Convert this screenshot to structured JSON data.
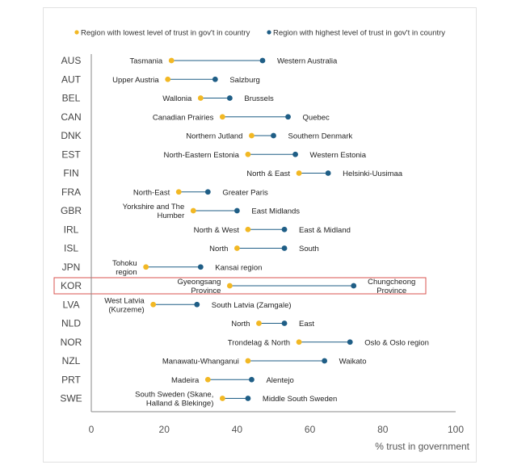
{
  "chart_data": {
    "type": "dumbbell",
    "xlabel": "% trust in government",
    "xlim": [
      0,
      100
    ],
    "xticks": [
      0,
      20,
      40,
      60,
      80,
      100
    ],
    "legend": {
      "position": "top",
      "lowest": "Region with lowest level of trust in gov't in country",
      "highest": "Region with highest level of trust in gov't in country"
    },
    "colors": {
      "lowest": "#f2b824",
      "highest": "#1f5e86",
      "connector": "#1f5e86",
      "highlight": "#d9534f",
      "axis": "#8a8a8a"
    },
    "highlighted_country": "KOR",
    "rows": [
      {
        "country": "AUS",
        "low_region": [
          "Tasmania"
        ],
        "low": 22,
        "high_region": [
          "Western Australia"
        ],
        "high": 47
      },
      {
        "country": "AUT",
        "low_region": [
          "Upper Austria"
        ],
        "low": 21,
        "high_region": [
          "Salzburg"
        ],
        "high": 34
      },
      {
        "country": "BEL",
        "low_region": [
          "Wallonia"
        ],
        "low": 30,
        "high_region": [
          "Brussels"
        ],
        "high": 38
      },
      {
        "country": "CAN",
        "low_region": [
          "Canadian Prairies"
        ],
        "low": 36,
        "high_region": [
          "Quebec"
        ],
        "high": 54
      },
      {
        "country": "DNK",
        "low_region": [
          "Northern Jutland"
        ],
        "low": 44,
        "high_region": [
          "Southern Denmark"
        ],
        "high": 50
      },
      {
        "country": "EST",
        "low_region": [
          "North-Eastern Estonia"
        ],
        "low": 43,
        "high_region": [
          "Western Estonia"
        ],
        "high": 56
      },
      {
        "country": "FIN",
        "low_region": [
          "North & East"
        ],
        "low": 57,
        "high_region": [
          "Helsinki-Uusimaa"
        ],
        "high": 65
      },
      {
        "country": "FRA",
        "low_region": [
          "North-East"
        ],
        "low": 24,
        "high_region": [
          "Greater Paris"
        ],
        "high": 32
      },
      {
        "country": "GBR",
        "low_region": [
          "Yorkshire and The",
          "Humber"
        ],
        "low": 28,
        "high_region": [
          "East Midlands"
        ],
        "high": 40
      },
      {
        "country": "IRL",
        "low_region": [
          "North & West"
        ],
        "low": 43,
        "high_region": [
          "East & Midland"
        ],
        "high": 53
      },
      {
        "country": "ISL",
        "low_region": [
          "North"
        ],
        "low": 40,
        "high_region": [
          "South"
        ],
        "high": 53
      },
      {
        "country": "JPN",
        "low_region": [
          "Tohoku",
          "region"
        ],
        "low": 15,
        "high_region": [
          "Kansai region"
        ],
        "high": 30
      },
      {
        "country": "KOR",
        "low_region": [
          "Gyeongsang",
          "Province"
        ],
        "low": 38,
        "high_region": [
          "Chungcheong",
          "Province"
        ],
        "high": 72
      },
      {
        "country": "LVA",
        "low_region": [
          "West Latvia",
          "(Kurzeme)"
        ],
        "low": 17,
        "high_region": [
          "South Latvia (Zamgale)"
        ],
        "high": 29
      },
      {
        "country": "NLD",
        "low_region": [
          "North"
        ],
        "low": 46,
        "high_region": [
          "East"
        ],
        "high": 53
      },
      {
        "country": "NOR",
        "low_region": [
          "Trondelag & North"
        ],
        "low": 57,
        "high_region": [
          "Oslo & Oslo region"
        ],
        "high": 71
      },
      {
        "country": "NZL",
        "low_region": [
          "Manawatu-Whanganui"
        ],
        "low": 43,
        "high_region": [
          "Waikato"
        ],
        "high": 64
      },
      {
        "country": "PRT",
        "low_region": [
          "Madeira"
        ],
        "low": 32,
        "high_region": [
          "Alentejo"
        ],
        "high": 44
      },
      {
        "country": "SWE",
        "low_region": [
          "South Sweden (Skane,",
          "Halland & Blekinge)"
        ],
        "low": 36,
        "high_region": [
          "Middle South Sweden"
        ],
        "high": 43
      }
    ]
  }
}
